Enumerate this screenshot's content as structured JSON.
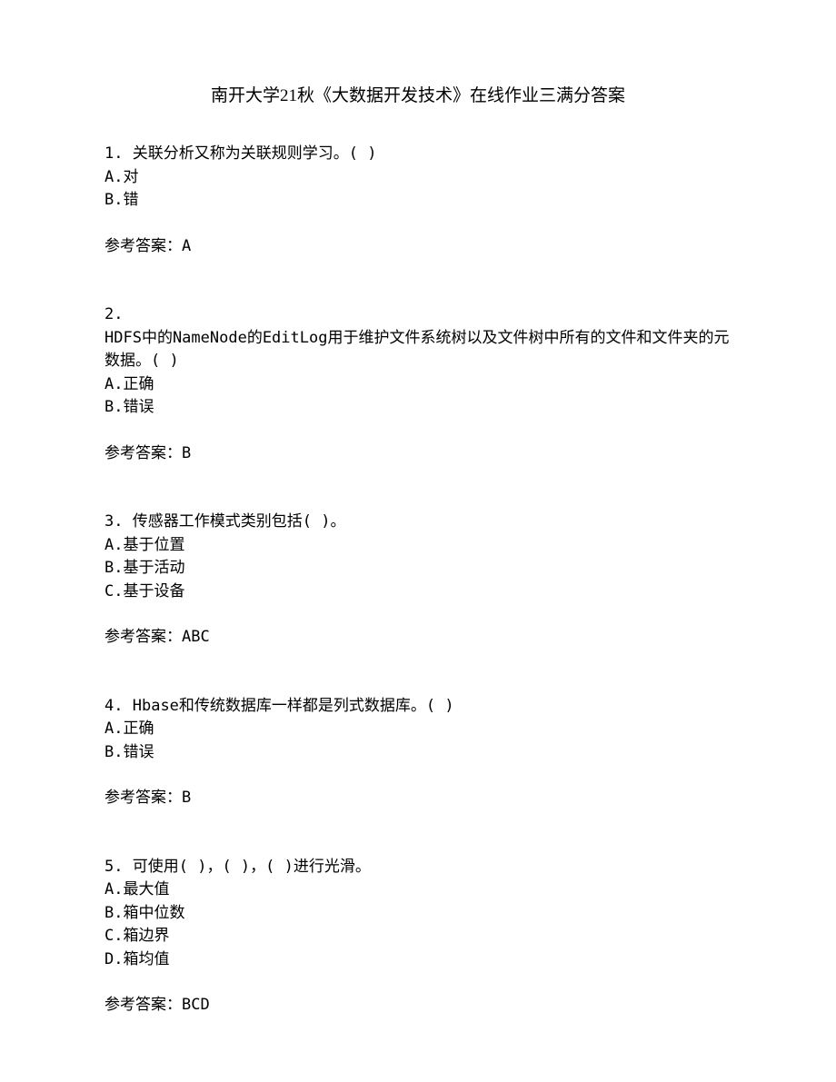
{
  "title": "南开大学21秋《大数据开发技术》在线作业三满分答案",
  "questions": [
    {
      "number": "1.",
      "text": "关联分析又称为关联规则学习。(  )",
      "options": [
        "A.对",
        "B.错"
      ],
      "answer": "参考答案：A"
    },
    {
      "number": "2.",
      "text": "HDFS中的NameNode的EditLog用于维护文件系统树以及文件树中所有的文件和文件夹的元数据。(  )",
      "options": [
        "A.正确",
        "B.错误"
      ],
      "answer": "参考答案：B"
    },
    {
      "number": "3.",
      "text": "传感器工作模式类别包括(  )。",
      "options": [
        "A.基于位置",
        "B.基于活动",
        "C.基于设备"
      ],
      "answer": "参考答案：ABC"
    },
    {
      "number": "4.",
      "text": "Hbase和传统数据库一样都是列式数据库。(  )",
      "options": [
        "A.正确",
        "B.错误"
      ],
      "answer": "参考答案：B"
    },
    {
      "number": "5.",
      "text": "可使用(  )，(  )，(  )进行光滑。",
      "options": [
        "A.最大值",
        "B.箱中位数",
        "C.箱边界",
        "D.箱均值"
      ],
      "answer": "参考答案：BCD"
    }
  ]
}
